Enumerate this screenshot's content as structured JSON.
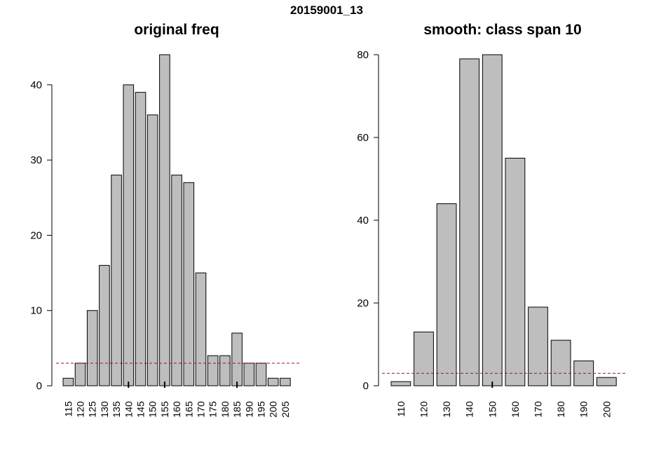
{
  "suptitle": "20159001_13",
  "chart_data": [
    {
      "type": "bar",
      "title": "original freq",
      "categories": [
        "115",
        "120",
        "125",
        "130",
        "135",
        "140",
        "145",
        "150",
        "155",
        "160",
        "165",
        "170",
        "175",
        "180",
        "185",
        "190",
        "195",
        "200",
        "205"
      ],
      "values": [
        1,
        3,
        10,
        16,
        28,
        40,
        39,
        36,
        44,
        28,
        27,
        15,
        4,
        4,
        7,
        3,
        3,
        1,
        1
      ],
      "ylim": [
        0,
        44
      ],
      "yticks": [
        "0",
        "10",
        "20",
        "30",
        "40"
      ],
      "reference_line": 3,
      "tick_marks_at": [
        "140",
        "155",
        "185"
      ],
      "bar_color": "#bebebe",
      "line_color": "#cc0000"
    },
    {
      "type": "bar",
      "title": "smooth: class span 10",
      "categories": [
        "110",
        "120",
        "130",
        "140",
        "150",
        "160",
        "170",
        "180",
        "190",
        "200"
      ],
      "values": [
        1,
        13,
        44,
        79,
        80,
        55,
        19,
        11,
        6,
        2
      ],
      "ylim": [
        0,
        80
      ],
      "yticks": [
        "0",
        "20",
        "40",
        "60",
        "80"
      ],
      "reference_line": 3,
      "tick_marks_at": [
        "150"
      ],
      "bar_color": "#bebebe",
      "line_color": "#cc0000"
    }
  ]
}
